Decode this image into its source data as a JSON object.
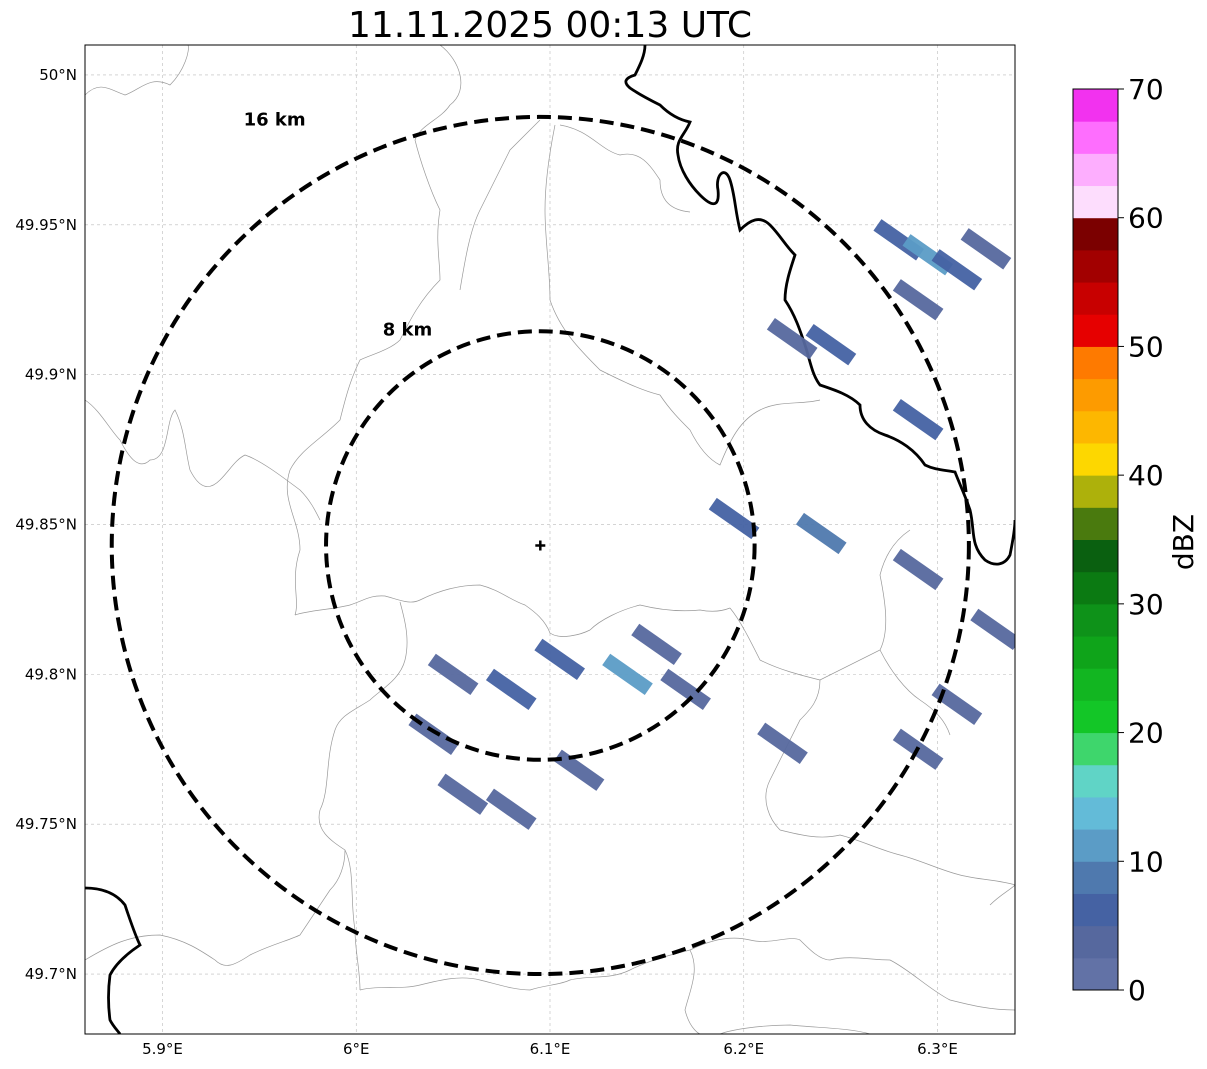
{
  "title": "11.11.2025 00:13 UTC",
  "map": {
    "lon_range": [
      5.86,
      6.34
    ],
    "lat_range": [
      49.68,
      50.01
    ],
    "center": {
      "lon": 6.095,
      "lat": 49.843
    },
    "rings": [
      {
        "label": "8 km",
        "radius_deg_lat": 0.0715
      },
      {
        "label": "16 km",
        "radius_deg_lat": 0.143
      }
    ],
    "lon_ticks": [
      {
        "value": 5.9,
        "label": "5.9°E"
      },
      {
        "value": 6.0,
        "label": "6°E"
      },
      {
        "value": 6.1,
        "label": "6.1°E"
      },
      {
        "value": 6.2,
        "label": "6.2°E"
      },
      {
        "value": 6.3,
        "label": "6.3°E"
      }
    ],
    "lat_ticks": [
      {
        "value": 50.0,
        "label": "50°N"
      },
      {
        "value": 49.95,
        "label": "49.95°N"
      },
      {
        "value": 49.9,
        "label": "49.9°N"
      },
      {
        "value": 49.85,
        "label": "49.85°N"
      },
      {
        "value": 49.8,
        "label": "49.8°N"
      },
      {
        "value": 49.75,
        "label": "49.75°N"
      },
      {
        "value": 49.7,
        "label": "49.7°N"
      }
    ],
    "echoes": [
      {
        "lon": 6.28,
        "lat": 49.945,
        "dbz": 5
      },
      {
        "lon": 6.295,
        "lat": 49.94,
        "dbz": 10
      },
      {
        "lon": 6.31,
        "lat": 49.935,
        "dbz": 5
      },
      {
        "lon": 6.325,
        "lat": 49.942,
        "dbz": 3
      },
      {
        "lon": 6.29,
        "lat": 49.925,
        "dbz": 4
      },
      {
        "lon": 6.225,
        "lat": 49.912,
        "dbz": 4
      },
      {
        "lon": 6.245,
        "lat": 49.91,
        "dbz": 5
      },
      {
        "lon": 6.29,
        "lat": 49.885,
        "dbz": 5
      },
      {
        "lon": 6.195,
        "lat": 49.852,
        "dbz": 5
      },
      {
        "lon": 6.24,
        "lat": 49.847,
        "dbz": 8
      },
      {
        "lon": 6.05,
        "lat": 49.8,
        "dbz": 4
      },
      {
        "lon": 6.08,
        "lat": 49.795,
        "dbz": 6
      },
      {
        "lon": 6.04,
        "lat": 49.78,
        "dbz": 3
      },
      {
        "lon": 6.105,
        "lat": 49.805,
        "dbz": 5
      },
      {
        "lon": 6.14,
        "lat": 49.8,
        "dbz": 12
      },
      {
        "lon": 6.155,
        "lat": 49.81,
        "dbz": 3
      },
      {
        "lon": 6.17,
        "lat": 49.795,
        "dbz": 4
      },
      {
        "lon": 6.055,
        "lat": 49.76,
        "dbz": 3
      },
      {
        "lon": 6.08,
        "lat": 49.755,
        "dbz": 4
      },
      {
        "lon": 6.115,
        "lat": 49.768,
        "dbz": 4
      },
      {
        "lon": 6.22,
        "lat": 49.777,
        "dbz": 4
      },
      {
        "lon": 6.31,
        "lat": 49.79,
        "dbz": 4
      },
      {
        "lon": 6.29,
        "lat": 49.835,
        "dbz": 3
      },
      {
        "lon": 6.33,
        "lat": 49.815,
        "dbz": 3
      },
      {
        "lon": 6.29,
        "lat": 49.775,
        "dbz": 3
      }
    ]
  },
  "colorbar": {
    "label": "dBZ",
    "min": 0,
    "max": 70,
    "tick_labels": [
      "0",
      "10",
      "20",
      "30",
      "40",
      "50",
      "60",
      "70"
    ],
    "colors": [
      "#6272a6",
      "#56689e",
      "#4562a3",
      "#4f79ae",
      "#5b9cc6",
      "#63bbd8",
      "#60d4c6",
      "#3ed66c",
      "#13c627",
      "#12b621",
      "#0fa41a",
      "#0e9219",
      "#0b7a12",
      "#0a6010",
      "#4a7a0e",
      "#adb10b",
      "#fdd700",
      "#fdb700",
      "#fd9b00",
      "#fe7a00",
      "#e60000",
      "#c80000",
      "#a20000",
      "#7b0000",
      "#fdddfd",
      "#fdaefe",
      "#fe6efe",
      "#f232ef"
    ]
  }
}
